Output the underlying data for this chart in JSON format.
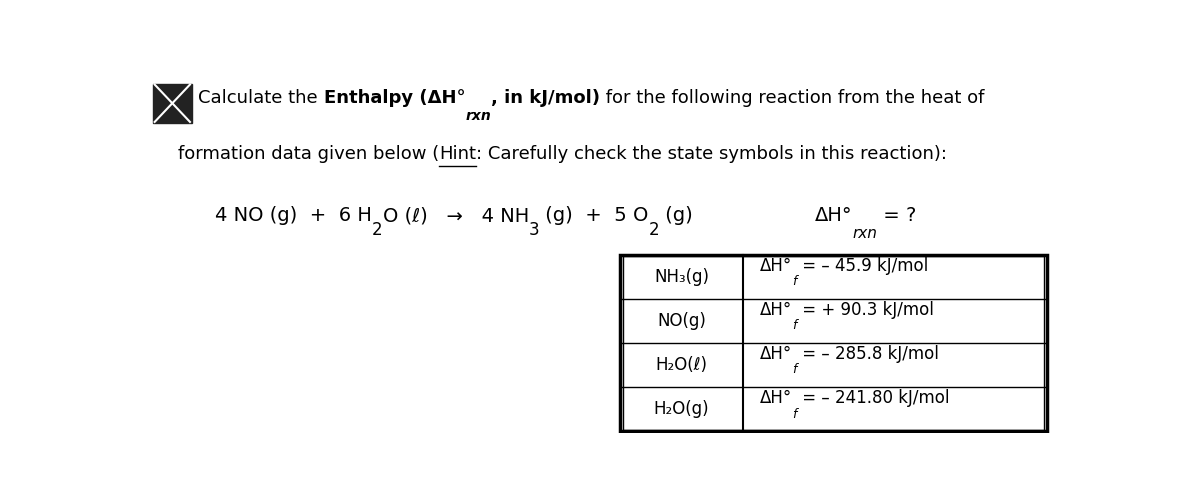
{
  "bg_color": "#ffffff",
  "font_size_main": 13,
  "font_size_table": 12,
  "table_compounds": [
    "NH₃(g)",
    "NO(g)",
    "H₂O(ℓ)",
    "H₂O(g)"
  ],
  "table_val_main": [
    "ΔH°",
    "ΔH°",
    "ΔH°",
    "ΔH°"
  ],
  "table_val_sub": [
    "f",
    "f",
    "f",
    "f"
  ],
  "table_val_rest": [
    " = – 45.9 kJ/mol",
    " = + 90.3 kJ/mol",
    " = – 285.8 kJ/mol",
    " = – 241.80 kJ/mol"
  ]
}
